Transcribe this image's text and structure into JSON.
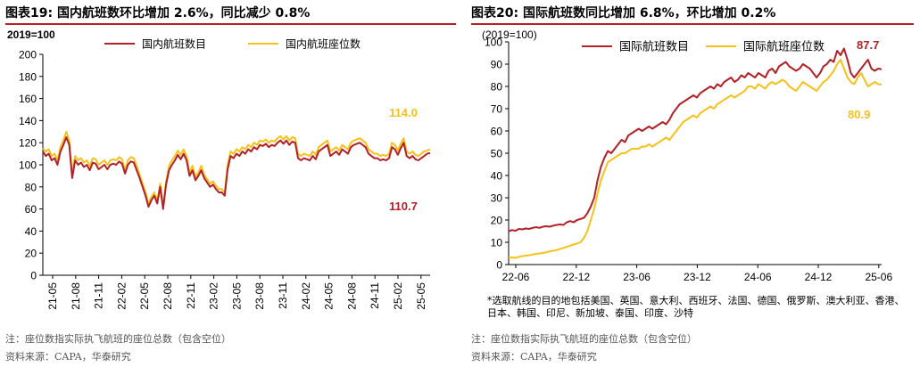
{
  "left": {
    "title": "图表19:  国内航班数环比增加 2.6%，同比减少 0.8%",
    "note": "注：座位数指实际执飞航班的座位总数（包含空位）",
    "source": "资料来源：CAPA，华泰研究"
  },
  "right": {
    "title": "图表20:  国际航班数同比增加 6.8%，环比增加 0.2%",
    "footnote": "*选取航线的目的地包括美国、英国、意大利、西班牙、法国、德国、俄罗斯、澳大利亚、香港、日本、韩国、印尼、新加坡、泰国、印度、沙特",
    "note": "注：座位数指实际执飞航班的座位总数（包含空位）",
    "source": "资料来源：CAPA，华泰研究"
  },
  "colors": {
    "flights": "#b32025",
    "seats": "#f5c21b",
    "accent": "#b32025"
  },
  "chart_data": [
    {
      "type": "line",
      "unit_label": "2019=100",
      "ylim": [
        0,
        200
      ],
      "yticks": [
        0,
        20,
        40,
        60,
        80,
        100,
        120,
        140,
        160,
        180,
        200
      ],
      "xticks": [
        "21-05",
        "21-08",
        "21-11",
        "22-02",
        "22-05",
        "22-08",
        "22-11",
        "23-02",
        "23-05",
        "23-08",
        "23-11",
        "24-02",
        "24-05",
        "24-08",
        "24-11",
        "25-02",
        "25-05"
      ],
      "legend_position": "top",
      "series": [
        {
          "name": "国内航班数目",
          "values": [
            112,
            108,
            110,
            104,
            106,
            100,
            112,
            118,
            125,
            118,
            88,
            104,
            100,
            102,
            98,
            100,
            95,
            102,
            101,
            96,
            98,
            100,
            96,
            100,
            101,
            100,
            103,
            101,
            92,
            100,
            103,
            102,
            95,
            88,
            80,
            72,
            62,
            68,
            72,
            65,
            80,
            60,
            82,
            95,
            100,
            104,
            109,
            105,
            110,
            104,
            90,
            95,
            86,
            90,
            95,
            88,
            84,
            80,
            82,
            78,
            75,
            75,
            72,
            96,
            108,
            106,
            110,
            108,
            112,
            110,
            114,
            112,
            116,
            114,
            118,
            117,
            119,
            116,
            118,
            117,
            120,
            122,
            119,
            122,
            118,
            121,
            120,
            106,
            104,
            106,
            105,
            104,
            108,
            105,
            112,
            114,
            116,
            118,
            108,
            110,
            112,
            109,
            114,
            112,
            110,
            116,
            118,
            119,
            120,
            118,
            116,
            110,
            108,
            106,
            106,
            104,
            105,
            104,
            106,
            116,
            114,
            109,
            115,
            120,
            108,
            106,
            108,
            105,
            104,
            106,
            108,
            110,
            110.7
          ],
          "end_label": "110.7"
        },
        {
          "name": "国内航班座位数",
          "values": [
            115,
            112,
            114,
            108,
            110,
            104,
            116,
            122,
            130,
            122,
            91,
            108,
            104,
            106,
            102,
            104,
            99,
            106,
            105,
            100,
            102,
            104,
            100,
            104,
            105,
            104,
            107,
            105,
            95,
            104,
            107,
            106,
            99,
            91,
            83,
            75,
            65,
            71,
            75,
            67,
            83,
            62,
            85,
            99,
            104,
            108,
            113,
            109,
            114,
            108,
            93,
            99,
            89,
            93,
            99,
            91,
            87,
            83,
            85,
            81,
            78,
            78,
            75,
            100,
            112,
            110,
            114,
            112,
            116,
            114,
            118,
            116,
            120,
            118,
            122,
            121,
            123,
            120,
            122,
            121,
            124,
            126,
            123,
            126,
            122,
            125,
            124,
            110,
            108,
            110,
            109,
            108,
            112,
            109,
            116,
            118,
            120,
            122,
            112,
            114,
            116,
            113,
            118,
            116,
            114,
            120,
            122,
            123,
            124,
            122,
            120,
            114,
            112,
            110,
            110,
            108,
            109,
            108,
            110,
            120,
            118,
            113,
            119,
            124,
            112,
            110,
            112,
            109,
            108,
            110,
            112,
            113,
            114.0
          ],
          "end_label": "114.0"
        }
      ]
    },
    {
      "type": "line",
      "unit_label": "(2019=100)",
      "ylim": [
        0,
        100
      ],
      "yticks": [
        0,
        10,
        20,
        30,
        40,
        50,
        60,
        70,
        80,
        90,
        100
      ],
      "xticks": [
        "22-06",
        "22-12",
        "23-06",
        "23-12",
        "24-06",
        "24-12",
        "25-06"
      ],
      "legend_position": "top",
      "series": [
        {
          "name": "国际航班数目",
          "values": [
            15,
            15.5,
            15.2,
            16,
            15.8,
            16.2,
            16,
            16.5,
            16.8,
            16.5,
            17,
            17.2,
            17,
            17.5,
            17.8,
            18,
            17.8,
            19,
            19.5,
            19,
            20,
            20.5,
            21,
            23,
            26,
            30,
            38,
            44,
            48,
            51,
            50,
            52,
            54,
            56,
            55,
            58,
            59,
            60,
            61,
            60,
            61,
            62,
            61,
            62,
            63,
            64,
            63,
            65,
            68,
            70,
            72,
            73,
            74,
            75,
            76,
            75,
            77,
            78,
            79,
            80,
            79,
            81,
            80,
            82,
            83,
            84,
            82,
            83,
            85,
            84,
            86,
            85,
            84,
            86,
            85,
            84,
            87,
            88,
            86,
            89,
            90,
            91,
            89,
            88,
            87,
            88,
            90,
            89,
            88,
            86,
            84,
            86,
            89,
            90,
            92,
            91,
            96,
            94,
            97,
            92,
            86,
            84,
            86,
            88,
            90,
            92,
            88,
            87,
            88,
            87.7
          ],
          "end_label": "87.7"
        },
        {
          "name": "国际航班座位数",
          "values": [
            3,
            3.2,
            3,
            3.5,
            3.8,
            4,
            4.2,
            4.5,
            4.8,
            5,
            5.2,
            5.5,
            6,
            6.2,
            6.5,
            7,
            7.5,
            8,
            8.5,
            9,
            9.5,
            10,
            12,
            15,
            20,
            25,
            32,
            38,
            42,
            46,
            47,
            48,
            49,
            50,
            50,
            51,
            52,
            52,
            52,
            53,
            53,
            54,
            53,
            54,
            55,
            56,
            57,
            56,
            58,
            60,
            62,
            64,
            65,
            66,
            67,
            66,
            68,
            69,
            70,
            71,
            70,
            72,
            73,
            74,
            75,
            76,
            75,
            76,
            77,
            78,
            80,
            80,
            79,
            81,
            80,
            79,
            81,
            82,
            81,
            82,
            83,
            82,
            80,
            79,
            78,
            80,
            82,
            81,
            80,
            79,
            78,
            80,
            82,
            83,
            85,
            87,
            90,
            92,
            88,
            84,
            82,
            81,
            84,
            86,
            83,
            80,
            81,
            82,
            81,
            80.9
          ],
          "end_label": "80.9"
        }
      ]
    }
  ]
}
